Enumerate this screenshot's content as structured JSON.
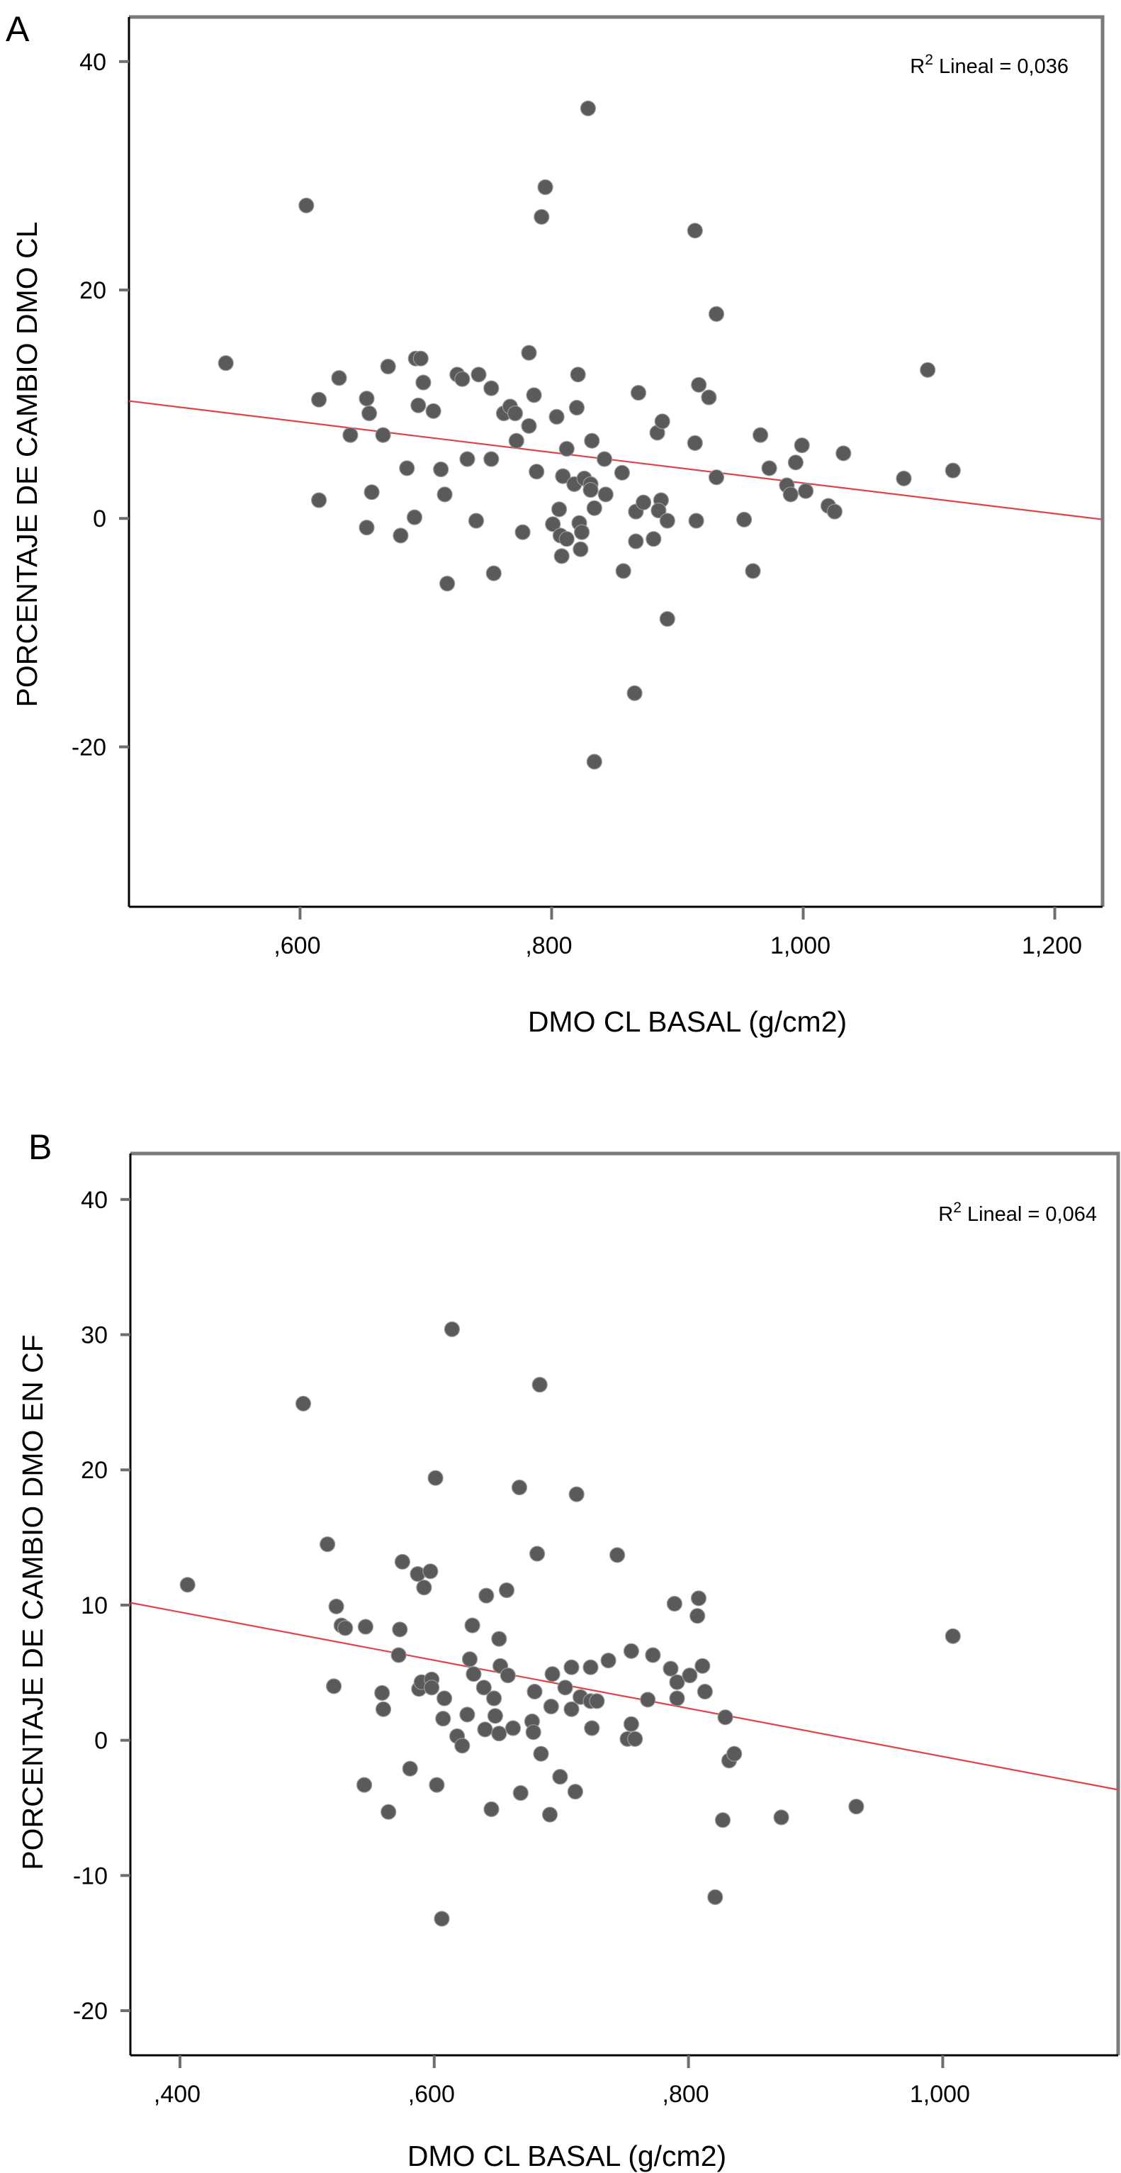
{
  "chart_data": [
    {
      "panel": "A",
      "type": "scatter",
      "title": "",
      "xlabel": "DMO CL BASAL (g/cm2)",
      "ylabel": "PORCENTAJE DE CAMBIO DMO CL",
      "annotation": {
        "base": "R",
        "sup": "2",
        "text": " Lineal = 0,036"
      },
      "xlim": [
        0.464,
        1.238
      ],
      "ylim": [
        -34.0,
        43.9
      ],
      "xticks": [
        0.6,
        0.8,
        1.0,
        1.2
      ],
      "xtick_labels": [
        ",600",
        ",800",
        "1,000",
        "1,200"
      ],
      "yticks": [
        40,
        20,
        0,
        -20
      ],
      "ytick_labels": [
        "40",
        "20",
        "0",
        "-20"
      ],
      "grid": false,
      "point_color": "#5a5a5a",
      "fit_line": {
        "color": "#e0424a",
        "intercept": 16.5,
        "slope": -13.4
      },
      "points": [
        [
          0.541,
          13.6
        ],
        [
          0.605,
          27.4
        ],
        [
          0.615,
          10.4
        ],
        [
          0.631,
          12.3
        ],
        [
          0.615,
          1.6
        ],
        [
          0.64,
          7.3
        ],
        [
          0.653,
          10.5
        ],
        [
          0.655,
          9.2
        ],
        [
          0.657,
          2.3
        ],
        [
          0.653,
          -0.8
        ],
        [
          0.666,
          7.3
        ],
        [
          0.67,
          13.3
        ],
        [
          0.68,
          -1.5
        ],
        [
          0.685,
          4.4
        ],
        [
          0.692,
          14.0
        ],
        [
          0.696,
          14.0
        ],
        [
          0.694,
          9.9
        ],
        [
          0.698,
          11.9
        ],
        [
          0.691,
          0.1
        ],
        [
          0.706,
          9.4
        ],
        [
          0.712,
          4.3
        ],
        [
          0.715,
          2.1
        ],
        [
          0.717,
          -5.7
        ],
        [
          0.725,
          12.6
        ],
        [
          0.729,
          12.2
        ],
        [
          0.733,
          5.2
        ],
        [
          0.74,
          -0.2
        ],
        [
          0.742,
          12.6
        ],
        [
          0.752,
          11.4
        ],
        [
          0.752,
          5.2
        ],
        [
          0.754,
          -4.8
        ],
        [
          0.762,
          9.2
        ],
        [
          0.767,
          9.8
        ],
        [
          0.771,
          9.2
        ],
        [
          0.772,
          6.8
        ],
        [
          0.777,
          -1.2
        ],
        [
          0.782,
          8.1
        ],
        [
          0.782,
          14.5
        ],
        [
          0.786,
          10.8
        ],
        [
          0.788,
          4.1
        ],
        [
          0.795,
          29.0
        ],
        [
          0.792,
          26.4
        ],
        [
          0.801,
          -0.5
        ],
        [
          0.804,
          8.9
        ],
        [
          0.806,
          0.8
        ],
        [
          0.807,
          -1.5
        ],
        [
          0.808,
          -3.3
        ],
        [
          0.809,
          3.7
        ],
        [
          0.812,
          -1.8
        ],
        [
          0.812,
          6.1
        ],
        [
          0.818,
          3.0
        ],
        [
          0.82,
          9.7
        ],
        [
          0.821,
          12.6
        ],
        [
          0.822,
          -0.4
        ],
        [
          0.823,
          -2.7
        ],
        [
          0.824,
          -1.2
        ],
        [
          0.826,
          3.5
        ],
        [
          0.829,
          35.9
        ],
        [
          0.831,
          3.0
        ],
        [
          0.832,
          6.8
        ],
        [
          0.831,
          2.5
        ],
        [
          0.834,
          0.9
        ],
        [
          0.842,
          5.2
        ],
        [
          0.843,
          2.1
        ],
        [
          0.856,
          4.0
        ],
        [
          0.857,
          -4.6
        ],
        [
          0.866,
          -15.3
        ],
        [
          0.869,
          11.0
        ],
        [
          0.867,
          0.6
        ],
        [
          0.867,
          -2.0
        ],
        [
          0.873,
          1.4
        ],
        [
          0.881,
          -1.8
        ],
        [
          0.884,
          7.5
        ],
        [
          0.887,
          1.6
        ],
        [
          0.888,
          8.5
        ],
        [
          0.885,
          0.7
        ],
        [
          0.892,
          -0.2
        ],
        [
          0.892,
          -8.8
        ],
        [
          0.834,
          -21.3
        ],
        [
          0.914,
          25.2
        ],
        [
          0.914,
          6.6
        ],
        [
          0.915,
          -0.2
        ],
        [
          0.917,
          11.7
        ],
        [
          0.925,
          10.6
        ],
        [
          0.931,
          17.9
        ],
        [
          0.931,
          3.6
        ],
        [
          0.953,
          -0.1
        ],
        [
          0.96,
          -4.6
        ],
        [
          0.966,
          7.3
        ],
        [
          0.973,
          4.4
        ],
        [
          0.987,
          2.9
        ],
        [
          0.99,
          2.1
        ],
        [
          0.994,
          4.9
        ],
        [
          0.999,
          6.4
        ],
        [
          1.002,
          2.4
        ],
        [
          1.02,
          1.1
        ],
        [
          1.025,
          0.6
        ],
        [
          1.032,
          5.7
        ],
        [
          1.08,
          3.5
        ],
        [
          1.099,
          13.0
        ],
        [
          1.119,
          4.2
        ]
      ]
    },
    {
      "panel": "B",
      "type": "scatter",
      "title": "",
      "xlabel": "DMO CL BASAL (g/cm2)",
      "ylabel": "PORCENTAJE DE CAMBIO DMO EN CF",
      "annotation": {
        "base": "R",
        "sup": "2",
        "text": " Lineal = 0,064"
      },
      "xlim": [
        0.361,
        1.138
      ],
      "ylim": [
        -23.3,
        43.4
      ],
      "xticks": [
        0.4,
        0.6,
        0.8,
        1.0
      ],
      "xtick_labels": [
        ",400",
        ",600",
        ",800",
        "1,000"
      ],
      "yticks": [
        40,
        30,
        20,
        10,
        0,
        -10,
        -20
      ],
      "ytick_labels": [
        "40",
        "30",
        "20",
        "10",
        "0",
        "-10",
        "-20"
      ],
      "grid": false,
      "point_color": "#5a5a5a",
      "fit_line": {
        "color": "#e0424a",
        "intercept": 16.6,
        "slope": -17.8
      },
      "points": [
        [
          0.406,
          11.5
        ],
        [
          0.497,
          24.9
        ],
        [
          0.516,
          14.5
        ],
        [
          0.523,
          9.9
        ],
        [
          0.521,
          4.0
        ],
        [
          0.527,
          8.5
        ],
        [
          0.53,
          8.3
        ],
        [
          0.546,
          8.4
        ],
        [
          0.545,
          -3.3
        ],
        [
          0.559,
          3.5
        ],
        [
          0.56,
          2.3
        ],
        [
          0.564,
          -5.3
        ],
        [
          0.573,
          8.2
        ],
        [
          0.572,
          6.3
        ],
        [
          0.575,
          13.2
        ],
        [
          0.581,
          -2.1
        ],
        [
          0.587,
          12.3
        ],
        [
          0.592,
          11.3
        ],
        [
          0.597,
          12.5
        ],
        [
          0.588,
          3.8
        ],
        [
          0.59,
          4.3
        ],
        [
          0.598,
          4.5
        ],
        [
          0.598,
          3.9
        ],
        [
          0.601,
          19.4
        ],
        [
          0.602,
          -3.3
        ],
        [
          0.607,
          1.6
        ],
        [
          0.608,
          3.1
        ],
        [
          0.606,
          -13.2
        ],
        [
          0.614,
          30.4
        ],
        [
          0.618,
          0.3
        ],
        [
          0.622,
          -0.4
        ],
        [
          0.626,
          1.9
        ],
        [
          0.628,
          6.0
        ],
        [
          0.63,
          8.5
        ],
        [
          0.631,
          4.9
        ],
        [
          0.639,
          3.9
        ],
        [
          0.64,
          0.8
        ],
        [
          0.641,
          10.7
        ],
        [
          0.645,
          -5.1
        ],
        [
          0.647,
          3.1
        ],
        [
          0.648,
          1.8
        ],
        [
          0.651,
          7.5
        ],
        [
          0.651,
          0.5
        ],
        [
          0.652,
          5.5
        ],
        [
          0.657,
          11.1
        ],
        [
          0.658,
          4.8
        ],
        [
          0.662,
          0.9
        ],
        [
          0.667,
          18.7
        ],
        [
          0.668,
          -3.9
        ],
        [
          0.677,
          1.4
        ],
        [
          0.678,
          0.6
        ],
        [
          0.679,
          3.6
        ],
        [
          0.681,
          13.8
        ],
        [
          0.683,
          26.3
        ],
        [
          0.684,
          -1.0
        ],
        [
          0.691,
          -5.5
        ],
        [
          0.692,
          2.5
        ],
        [
          0.693,
          4.9
        ],
        [
          0.699,
          -2.7
        ],
        [
          0.703,
          3.9
        ],
        [
          0.708,
          2.3
        ],
        [
          0.708,
          5.4
        ],
        [
          0.711,
          -3.8
        ],
        [
          0.712,
          18.2
        ],
        [
          0.715,
          3.2
        ],
        [
          0.723,
          2.9
        ],
        [
          0.723,
          5.4
        ],
        [
          0.724,
          0.9
        ],
        [
          0.728,
          2.9
        ],
        [
          0.737,
          5.9
        ],
        [
          0.744,
          13.7
        ],
        [
          0.752,
          0.1
        ],
        [
          0.755,
          6.6
        ],
        [
          0.755,
          1.2
        ],
        [
          0.758,
          0.1
        ],
        [
          0.768,
          3.0
        ],
        [
          0.772,
          6.3
        ],
        [
          0.786,
          5.3
        ],
        [
          0.789,
          10.1
        ],
        [
          0.791,
          4.3
        ],
        [
          0.791,
          3.1
        ],
        [
          0.801,
          4.8
        ],
        [
          0.807,
          9.2
        ],
        [
          0.808,
          10.5
        ],
        [
          0.811,
          5.5
        ],
        [
          0.813,
          3.6
        ],
        [
          0.829,
          1.7
        ],
        [
          0.821,
          -11.6
        ],
        [
          0.827,
          -5.9
        ],
        [
          0.832,
          -1.5
        ],
        [
          0.836,
          -1.0
        ],
        [
          0.873,
          -5.7
        ],
        [
          0.932,
          -4.9
        ],
        [
          1.008,
          7.7
        ]
      ]
    }
  ]
}
